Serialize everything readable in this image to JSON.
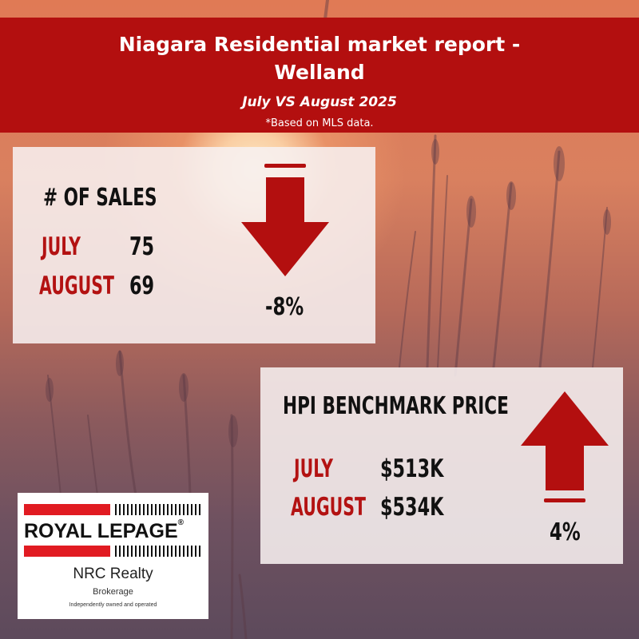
{
  "banner": {
    "title_line1": "Niagara Residential market report -",
    "title_line2": "Welland",
    "subtitle": "July VS August 2025",
    "note": "*Based on MLS data."
  },
  "sales": {
    "heading": "# OF SALES",
    "months": [
      {
        "label": "JULY",
        "value": "75"
      },
      {
        "label": "AUGUST",
        "value": "69"
      }
    ],
    "change": "-8%",
    "direction": "down",
    "arrow_color": "#b30f0f"
  },
  "hpi": {
    "heading": "HPI BENCHMARK PRICE",
    "months": [
      {
        "label": "JULY",
        "value": "$513K"
      },
      {
        "label": "AUGUST",
        "value": "$534K"
      }
    ],
    "change": "4%",
    "direction": "up",
    "arrow_color": "#b30f0f"
  },
  "logo": {
    "brand_first": "ROYAL",
    "brand_second": "LEPAGE",
    "registered": "®",
    "company": "NRC Realty",
    "subtitle": "Brokerage",
    "tagline": "Independently owned and operated",
    "brand_color": "#e11b22"
  },
  "colors": {
    "banner": "#b30f0f",
    "accent_text": "#b31212"
  }
}
